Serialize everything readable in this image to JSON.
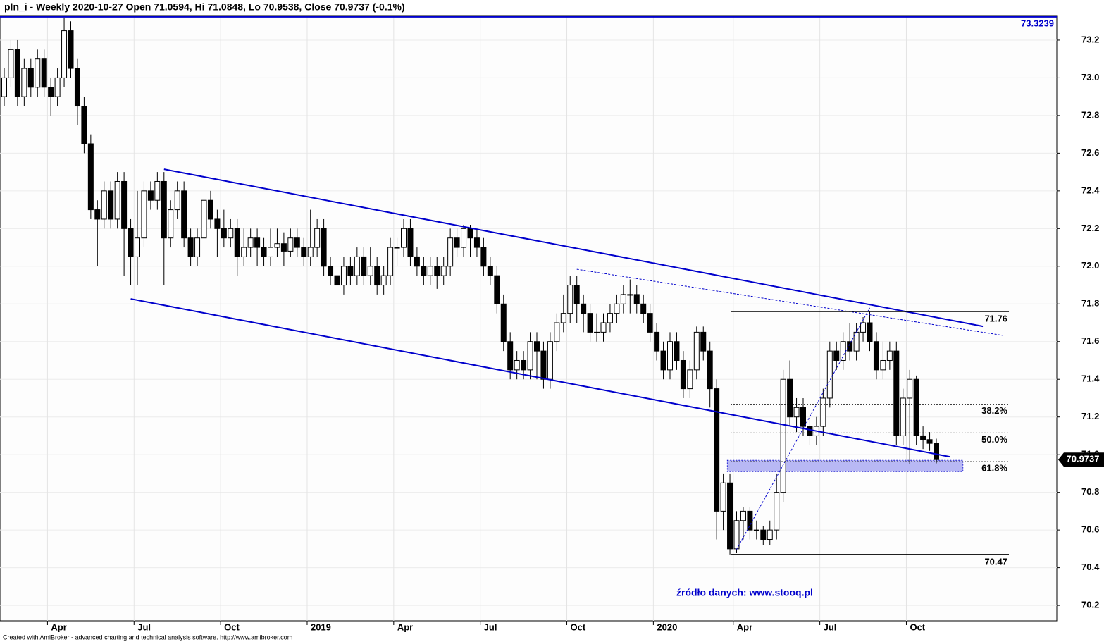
{
  "chart_data": {
    "type": "candlestick",
    "title": "pln_i - Weekly 2020-10-27 Open 71.0594, Hi 71.0848, Lo 70.9538, Close 70.9737 (-0.1%)",
    "footer": "Created with AmiBroker - advanced charting and technical analysis software. http://www.amibroker.com",
    "source": "źródło danych: www.stooq.pl",
    "categories": [
      null,
      null,
      null,
      null,
      null,
      null,
      null,
      "Apr",
      null,
      null,
      null,
      null,
      null,
      null,
      null,
      null,
      null,
      null,
      null,
      null,
      "Jul",
      null,
      null,
      null,
      null,
      null,
      null,
      null,
      null,
      null,
      null,
      null,
      null,
      "Oct",
      null,
      null,
      null,
      null,
      null,
      null,
      null,
      null,
      null,
      null,
      null,
      null,
      "2019",
      null,
      null,
      null,
      null,
      null,
      null,
      null,
      null,
      null,
      null,
      null,
      null,
      "Apr",
      null,
      null,
      null,
      null,
      null,
      null,
      null,
      null,
      null,
      null,
      null,
      null,
      "Jul",
      null,
      null,
      null,
      null,
      null,
      null,
      null,
      null,
      null,
      null,
      null,
      null,
      "Oct",
      null,
      null,
      null,
      null,
      null,
      null,
      null,
      null,
      null,
      null,
      null,
      null,
      "2020",
      null,
      null,
      null,
      null,
      null,
      null,
      null,
      null,
      null,
      null,
      null,
      "Apr",
      null,
      null,
      null,
      null,
      null,
      null,
      null,
      null,
      null,
      null,
      null,
      null,
      "Jul",
      null,
      null,
      null,
      null,
      null,
      null,
      null,
      null,
      null,
      null,
      null,
      null,
      "Oct",
      null,
      null,
      null,
      null
    ],
    "open": [
      72.9,
      73.0,
      73.15,
      72.9,
      73.05,
      72.95,
      73.1,
      72.95,
      72.9,
      73.0,
      73.25,
      73.05,
      72.85,
      72.65,
      72.3,
      72.25,
      72.4,
      72.25,
      72.45,
      72.2,
      72.05,
      72.15,
      72.4,
      72.35,
      72.45,
      72.15,
      72.3,
      72.4,
      72.15,
      72.05,
      72.15,
      72.35,
      72.25,
      72.2,
      72.15,
      72.2,
      72.05,
      72.1,
      72.15,
      72.1,
      72.05,
      72.1,
      72.12,
      72.08,
      72.15,
      72.1,
      72.05,
      72.1,
      72.2,
      72.0,
      71.95,
      71.9,
      72.0,
      71.95,
      72.05,
      71.95,
      72.0,
      71.9,
      71.95,
      72.1,
      72.1,
      72.2,
      72.05,
      72.0,
      71.95,
      72.0,
      71.95,
      72.0,
      72.15,
      72.1,
      72.2,
      72.15,
      72.1,
      72.0,
      71.95,
      71.8,
      71.6,
      71.45,
      71.5,
      71.45,
      71.6,
      71.55,
      71.4,
      71.6,
      71.7,
      71.75,
      71.9,
      71.8,
      71.75,
      71.65,
      71.65,
      71.7,
      71.75,
      71.8,
      71.85,
      71.85,
      71.8,
      71.75,
      71.65,
      71.55,
      71.45,
      71.6,
      71.5,
      71.35,
      71.45,
      71.65,
      71.55,
      71.35,
      70.7,
      70.85,
      70.5,
      70.65,
      70.7,
      70.6,
      70.6,
      70.55,
      70.6,
      70.8,
      71.4,
      71.2,
      71.25,
      71.15,
      71.1,
      71.15,
      71.3,
      71.55,
      71.5,
      71.6,
      71.55,
      71.65,
      71.7,
      71.6,
      71.45,
      71.5,
      71.55,
      71.1,
      71.3,
      71.4,
      71.1,
      71.08,
      71.0594
    ],
    "high": [
      73.05,
      73.2,
      73.2,
      73.1,
      73.1,
      73.15,
      73.15,
      73.0,
      73.05,
      73.32,
      73.3,
      73.1,
      72.9,
      72.7,
      72.35,
      72.45,
      72.45,
      72.5,
      72.5,
      72.25,
      72.4,
      72.45,
      72.45,
      72.5,
      72.5,
      72.35,
      72.45,
      72.45,
      72.2,
      72.2,
      72.4,
      72.4,
      72.3,
      72.3,
      72.25,
      72.25,
      72.2,
      72.2,
      72.2,
      72.15,
      72.2,
      72.2,
      72.18,
      72.2,
      72.2,
      72.15,
      72.3,
      72.25,
      72.25,
      72.05,
      72.0,
      72.05,
      72.05,
      72.1,
      72.1,
      72.1,
      72.05,
      72.0,
      72.15,
      72.15,
      72.25,
      72.25,
      72.1,
      72.05,
      72.05,
      72.05,
      72.05,
      72.2,
      72.2,
      72.22,
      72.22,
      72.2,
      72.15,
      72.05,
      72.0,
      71.85,
      71.65,
      71.55,
      71.55,
      71.65,
      71.65,
      71.6,
      71.65,
      71.75,
      71.85,
      71.95,
      71.95,
      71.85,
      71.8,
      71.75,
      71.75,
      71.8,
      71.85,
      71.9,
      71.93,
      71.9,
      71.85,
      71.8,
      71.7,
      71.6,
      71.65,
      71.65,
      71.55,
      71.5,
      71.68,
      71.68,
      71.6,
      71.4,
      70.9,
      70.9,
      70.7,
      70.72,
      70.72,
      70.65,
      70.62,
      70.65,
      70.9,
      71.45,
      71.5,
      71.3,
      71.3,
      71.2,
      71.2,
      71.35,
      71.6,
      71.6,
      71.65,
      71.7,
      71.7,
      71.73,
      71.76,
      71.65,
      71.6,
      71.6,
      71.6,
      71.35,
      71.45,
      71.42,
      71.15,
      71.12,
      71.0848
    ],
    "low": [
      72.85,
      72.95,
      72.85,
      72.85,
      72.9,
      72.9,
      72.9,
      72.8,
      72.85,
      72.95,
      73.0,
      72.75,
      72.6,
      72.25,
      72.0,
      72.2,
      72.2,
      72.2,
      71.95,
      71.9,
      71.9,
      72.1,
      72.3,
      72.3,
      71.9,
      72.1,
      72.25,
      72.1,
      72.0,
      72.0,
      72.1,
      72.2,
      72.05,
      72.1,
      72.1,
      71.95,
      72.0,
      72.05,
      72.0,
      72.0,
      72.0,
      72.05,
      72.0,
      72.05,
      72.05,
      72.0,
      72.0,
      72.05,
      71.95,
      71.9,
      71.85,
      71.85,
      71.9,
      71.9,
      71.9,
      71.9,
      71.85,
      71.85,
      71.9,
      72.0,
      72.05,
      72.0,
      71.95,
      71.9,
      71.9,
      71.88,
      71.9,
      71.95,
      72.05,
      72.05,
      72.05,
      72.05,
      71.95,
      71.9,
      71.75,
      71.55,
      71.4,
      71.4,
      71.4,
      71.4,
      71.4,
      71.35,
      71.35,
      71.55,
      71.65,
      71.7,
      71.7,
      71.65,
      71.6,
      71.6,
      71.6,
      71.65,
      71.7,
      71.75,
      71.75,
      71.75,
      71.7,
      71.6,
      71.5,
      71.4,
      71.4,
      71.45,
      71.3,
      71.3,
      71.4,
      71.5,
      71.25,
      70.55,
      70.6,
      70.47,
      70.48,
      70.55,
      70.55,
      70.55,
      70.52,
      70.52,
      70.55,
      70.75,
      71.15,
      71.12,
      71.1,
      71.05,
      71.05,
      71.1,
      71.25,
      71.45,
      71.45,
      71.5,
      71.5,
      71.6,
      71.55,
      71.4,
      71.4,
      71.45,
      71.05,
      71.05,
      70.95,
      71.05,
      71.03,
      71.02,
      70.9538
    ],
    "close": [
      73.0,
      73.15,
      72.9,
      73.05,
      72.95,
      73.1,
      72.95,
      72.9,
      73.0,
      73.25,
      73.05,
      72.85,
      72.65,
      72.3,
      72.25,
      72.4,
      72.25,
      72.45,
      72.2,
      72.05,
      72.15,
      72.4,
      72.35,
      72.45,
      72.15,
      72.3,
      72.4,
      72.15,
      72.05,
      72.15,
      72.35,
      72.25,
      72.2,
      72.15,
      72.2,
      72.05,
      72.1,
      72.15,
      72.1,
      72.05,
      72.1,
      72.12,
      72.08,
      72.15,
      72.1,
      72.05,
      72.1,
      72.2,
      72.0,
      71.95,
      71.9,
      72.0,
      71.95,
      72.05,
      71.95,
      72.0,
      71.9,
      71.95,
      72.1,
      72.1,
      72.2,
      72.05,
      72.0,
      71.95,
      72.0,
      71.95,
      72.0,
      72.15,
      72.1,
      72.2,
      72.15,
      72.1,
      72.0,
      71.95,
      71.8,
      71.6,
      71.45,
      71.5,
      71.45,
      71.6,
      71.55,
      71.4,
      71.6,
      71.7,
      71.75,
      71.9,
      71.8,
      71.75,
      71.65,
      71.65,
      71.7,
      71.75,
      71.8,
      71.85,
      71.85,
      71.8,
      71.75,
      71.65,
      71.55,
      71.45,
      71.6,
      71.5,
      71.35,
      71.45,
      71.65,
      71.55,
      71.35,
      70.7,
      70.85,
      70.5,
      70.65,
      70.7,
      70.6,
      70.6,
      70.55,
      70.6,
      70.8,
      71.4,
      71.2,
      71.25,
      71.15,
      71.1,
      71.15,
      71.3,
      71.55,
      71.5,
      71.6,
      71.55,
      71.65,
      71.7,
      71.6,
      71.45,
      71.5,
      71.55,
      71.1,
      71.3,
      71.4,
      71.1,
      71.08,
      71.06,
      70.9737
    ],
    "up_color": "#ffffff",
    "down_color": "#000000",
    "trend_color": "#0000cc",
    "ylim": [
      70.118,
      73.413
    ],
    "yticks": [
      70.2,
      70.4,
      70.6,
      70.8,
      {
        "value": 71,
        "label": "71.0"
      },
      71.2,
      71.4,
      71.6,
      71.8,
      {
        "value": 72,
        "label": "72.0"
      },
      72.2,
      72.4,
      72.6,
      72.8,
      {
        "value": 73,
        "label": "73.0"
      },
      73.2
    ],
    "grid": true,
    "level": {
      "value": 73.3239,
      "color": "#0000cc"
    },
    "trendlines": [
      {
        "style": "solid",
        "from": [
          24,
          72.515
        ],
        "to": [
          147,
          71.681
        ]
      },
      {
        "style": "solid",
        "from": [
          19,
          71.827
        ],
        "to": [
          142,
          70.989
        ]
      },
      {
        "style": "dotted",
        "from": [
          86,
          71.984
        ],
        "to": [
          150,
          71.633
        ]
      },
      {
        "style": "dotted",
        "from": [
          110,
          70.497
        ],
        "to": [
          130,
          71.779
        ]
      }
    ],
    "fib": {
      "high": 71.76,
      "low": 70.47,
      "from": 109.1,
      "to": 150.9,
      "levels": [
        {
          "value": 38.2,
          "label": "38.2%"
        },
        {
          "value": 50,
          "label": "50.0%"
        },
        {
          "value": 61.8,
          "label": "61.8%"
        }
      ],
      "zone": {
        "from": 108.6,
        "to": 144,
        "range": [
          70.91,
          70.97
        ],
        "color": "#b8b8f4"
      }
    }
  }
}
